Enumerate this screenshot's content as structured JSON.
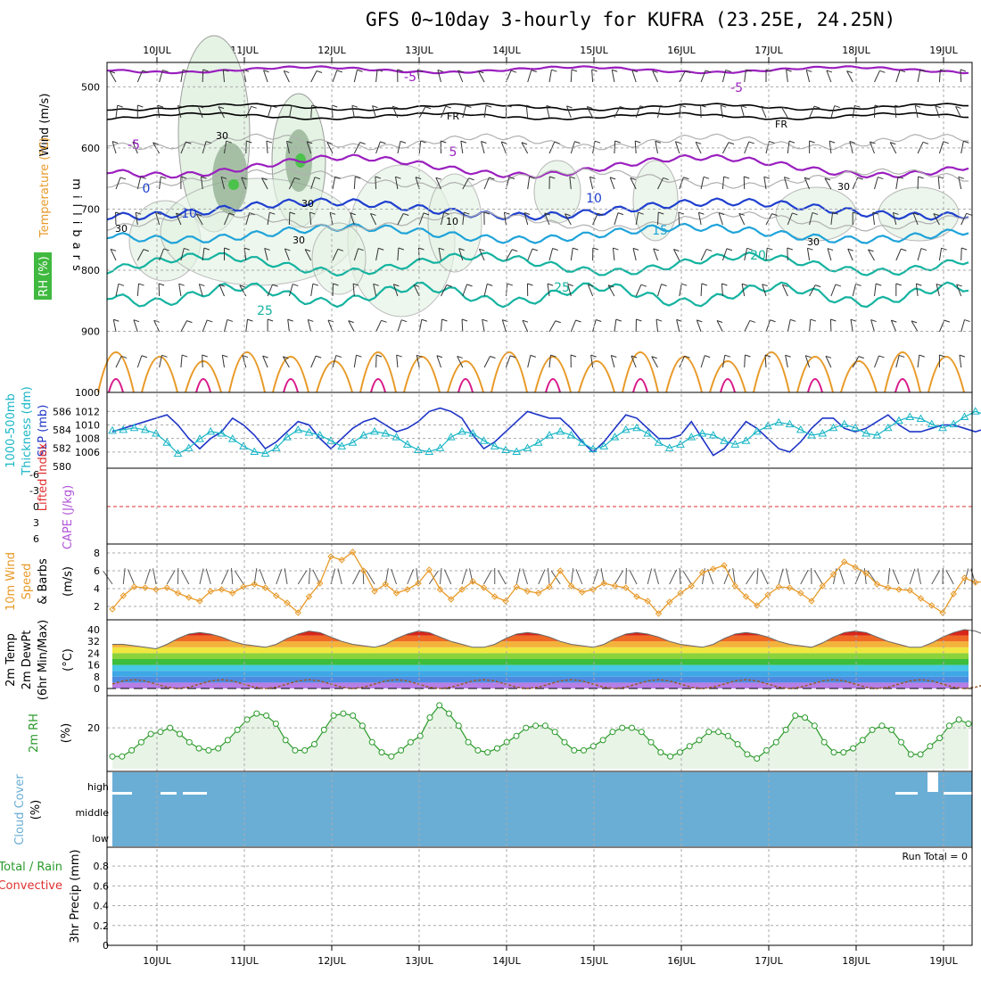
{
  "title": "GFS 0~10day 3-hourly for KUFRA (23.25E, 24.25N)",
  "colors": {
    "rh_fill": "#e4f3e4",
    "purple": "#9a1fbf",
    "black": "#000000",
    "blue": "#1f3fcf",
    "lightblue": "#1ea3d9",
    "teal": "#14b3a0",
    "orange": "#e89a28",
    "magenta": "#d8198a",
    "slp": "#1f35c7",
    "thickness": "#19b6c6",
    "lifted": "#e03030",
    "cape": "#b055d8",
    "wind10m": "#e89a28",
    "rh2m": "#2a9a2a",
    "cloud": "#6aaed6",
    "grid": "#aaaaaa"
  },
  "x_axis": {
    "dates": [
      "10JUL",
      "11JUL",
      "12JUL",
      "13JUL",
      "14JUL",
      "15JUL",
      "16JUL",
      "17JUL",
      "18JUL",
      "19JUL"
    ]
  },
  "panels": {
    "upper": {
      "labels": [
        "Wind (m/s)",
        "Temperature (°C)",
        "RH (%)"
      ],
      "axis_label": "millibars",
      "yticks": [
        500,
        600,
        700,
        800,
        900,
        1000
      ],
      "ylim": [
        460,
        1000
      ],
      "contour_labels": {
        "temp": [
          "-5",
          "-5",
          "-5",
          "5",
          "0",
          "10",
          "10",
          "15",
          "20",
          "25",
          "25"
        ],
        "freezing": [
          "FR",
          "FR"
        ],
        "rh": [
          "30",
          "30",
          "30",
          "10",
          "30",
          "30",
          "30"
        ]
      }
    },
    "slp": {
      "labels": [
        "1000-500mb",
        "Thickness (dm)",
        "SLP (mb)"
      ],
      "left_ticks": [
        "586",
        "584",
        "582",
        "580"
      ],
      "right_ticks": [
        "1012",
        "1010",
        "1008",
        "1006"
      ]
    },
    "cape": {
      "labels": [
        "Lifted Index",
        "CAPE (J/kg)"
      ],
      "yticks": [
        "-6",
        "-3",
        "0",
        "3",
        "6"
      ]
    },
    "wind10m": {
      "labels": [
        "10m Wind",
        "Speed",
        "& Barbs",
        "(m/s)"
      ],
      "yticks": [
        "8",
        "6",
        "4",
        "2"
      ]
    },
    "temp2m": {
      "labels": [
        "2m Temp",
        "2m DewPt",
        "(6hr Min/Max)",
        "(°C)"
      ],
      "yticks": [
        "40",
        "32",
        "24",
        "16",
        "8",
        "0"
      ]
    },
    "rh2m": {
      "labels": [
        "2m RH",
        "(%)"
      ],
      "yticks": [
        "20"
      ]
    },
    "cloud": {
      "labels": [
        "Cloud Cover",
        "(%)"
      ],
      "levels": [
        "high",
        "middle",
        "low"
      ]
    },
    "precip": {
      "labels": [
        "Total / Rain",
        "Convective",
        "3hr Precip (mm)"
      ],
      "yticks": [
        "0.8",
        "0.6",
        "0.4",
        "0.2",
        "0"
      ],
      "run_total": "Run Total = 0"
    }
  },
  "chart_data": [
    {
      "type": "line",
      "name": "SLP (mb)",
      "x_dates_start": "09JUL 12Z",
      "step_hours": 3,
      "values": [
        1009,
        1009.5,
        1010,
        1010.5,
        1011,
        1011.5,
        1010,
        1008,
        1006.5,
        1008,
        1009,
        1011,
        1010,
        1008.5,
        1006.5,
        1007.5,
        1009,
        1010.5,
        1010,
        1008,
        1006.5,
        1008,
        1009.5,
        1010.5,
        1011,
        1010,
        1009,
        1009.5,
        1010.5,
        1012,
        1012.5,
        1012,
        1011,
        1008.5,
        1006.5,
        1007.5,
        1009,
        1010.5,
        1012,
        1011.5,
        1011,
        1011,
        1009.5,
        1007.5,
        1006,
        1007.5,
        1009.5,
        1011.5,
        1011,
        1009.5,
        1008,
        1008,
        1008.5,
        1010.5,
        1008,
        1005.5,
        1006.5,
        1008.5,
        1010.5,
        1009.5,
        1008,
        1006.5,
        1006,
        1007.5,
        1009.5,
        1011,
        1011,
        1009.5,
        1009,
        1009.5,
        1010.5,
        1011.5,
        1010,
        1009,
        1009,
        1009.5,
        1010,
        1010,
        1009.5,
        1009,
        1009.5,
        1010.5
      ]
    },
    {
      "type": "line",
      "name": "1000-500mb Thickness (dm)",
      "values": [
        583.9,
        584,
        584.2,
        584,
        583.6,
        582.6,
        581.4,
        582,
        583,
        583.8,
        583.6,
        583,
        582.2,
        581.6,
        581.4,
        582,
        583.2,
        584,
        583.7,
        583.4,
        582.8,
        582.2,
        582.6,
        583.4,
        583.8,
        583.6,
        583.2,
        582.4,
        581.8,
        581.6,
        582,
        583.2,
        583.8,
        583.6,
        582.8,
        582.2,
        581.8,
        581.6,
        582,
        582.6,
        583.4,
        583.8,
        583.4,
        582.6,
        581.9,
        582.2,
        583.2,
        584,
        584.2,
        583.6,
        582.6,
        582,
        582.4,
        583.2,
        583.6,
        583.4,
        582.8,
        582.4,
        582.8,
        583.8,
        584.4,
        584.8,
        584.6,
        584,
        583.4,
        583.6,
        584.2,
        584.6,
        584.2,
        583.6,
        583.4,
        584.2,
        585,
        585.4,
        585.2,
        584.6,
        584.2,
        584.6,
        585.4,
        586,
        585.6,
        584.6,
        584.2,
        583.8
      ]
    },
    {
      "type": "line",
      "name": "10m Wind Speed (m/s)",
      "values": [
        1.7,
        3.2,
        4.2,
        4.1,
        3.9,
        4.1,
        3.5,
        3,
        2.6,
        3.7,
        3.9,
        3.5,
        4.2,
        4.5,
        4.1,
        3.2,
        2.4,
        1.3,
        3.1,
        4.6,
        7.6,
        7.2,
        8.1,
        6,
        3.7,
        4.5,
        3.5,
        3.9,
        4.6,
        6.1,
        3.9,
        2.8,
        3.9,
        4.8,
        4.1,
        3.1,
        2.6,
        4.2,
        3.7,
        3.5,
        4.2,
        6,
        4.3,
        3.6,
        3.9,
        4.6,
        4.3,
        4.1,
        3.1,
        2.6,
        1.2,
        2.5,
        3.5,
        4.3,
        5.8,
        6.2,
        6.6,
        4.3,
        3.1,
        2.1,
        3.3,
        4.2,
        4.1,
        3.5,
        2.6,
        4.3,
        5.6,
        7,
        6.4,
        5.7,
        4.5,
        4.1,
        3.9,
        3.8,
        2.9,
        2.1,
        1.3,
        3.4,
        5.2,
        4.7,
        4.8,
        4.2,
        4.3,
        4.2
      ]
    },
    {
      "type": "area",
      "name": "2m Temp (°C)",
      "values": [
        30,
        30,
        29,
        28,
        27,
        30,
        34,
        37,
        38,
        37,
        35,
        32,
        30,
        29,
        28,
        30,
        34,
        37,
        39,
        38,
        35,
        32,
        30,
        29,
        28,
        30,
        34,
        37,
        39,
        38,
        35,
        32,
        30,
        28,
        28,
        30,
        34,
        37,
        38,
        37,
        35,
        32,
        30,
        29,
        28,
        30,
        34,
        37,
        38,
        37,
        35,
        32,
        30,
        29,
        28,
        30,
        34,
        37,
        38,
        37,
        35,
        32,
        30,
        29,
        28,
        31,
        35,
        38,
        39,
        38,
        35,
        32,
        30,
        28,
        28,
        31,
        35,
        38,
        40,
        39,
        36,
        33,
        30,
        29
      ]
    },
    {
      "type": "area",
      "name": "2m RH (%)",
      "values": [
        6,
        6,
        9,
        13,
        17,
        18,
        20,
        17,
        13,
        10,
        9,
        10,
        14,
        19,
        24,
        27,
        26,
        22,
        14,
        9,
        9,
        12,
        19,
        26,
        27,
        26,
        21,
        13,
        8,
        6,
        9,
        13,
        16,
        25,
        31,
        27,
        21,
        13,
        9,
        8,
        10,
        13,
        16,
        20,
        21,
        21,
        18,
        13,
        9,
        9,
        11,
        14,
        18,
        20,
        20,
        18,
        13,
        8,
        6,
        8,
        11,
        14,
        18,
        18,
        16,
        12,
        7,
        5,
        9,
        13,
        19,
        26,
        25,
        21,
        13,
        8,
        8,
        10,
        14,
        19,
        21,
        19,
        13,
        7,
        7,
        11,
        15,
        21,
        24,
        22
      ]
    },
    {
      "type": "bar",
      "name": "3hr Precip (mm)",
      "values": [],
      "ylim": [
        0,
        0.9
      ]
    }
  ]
}
